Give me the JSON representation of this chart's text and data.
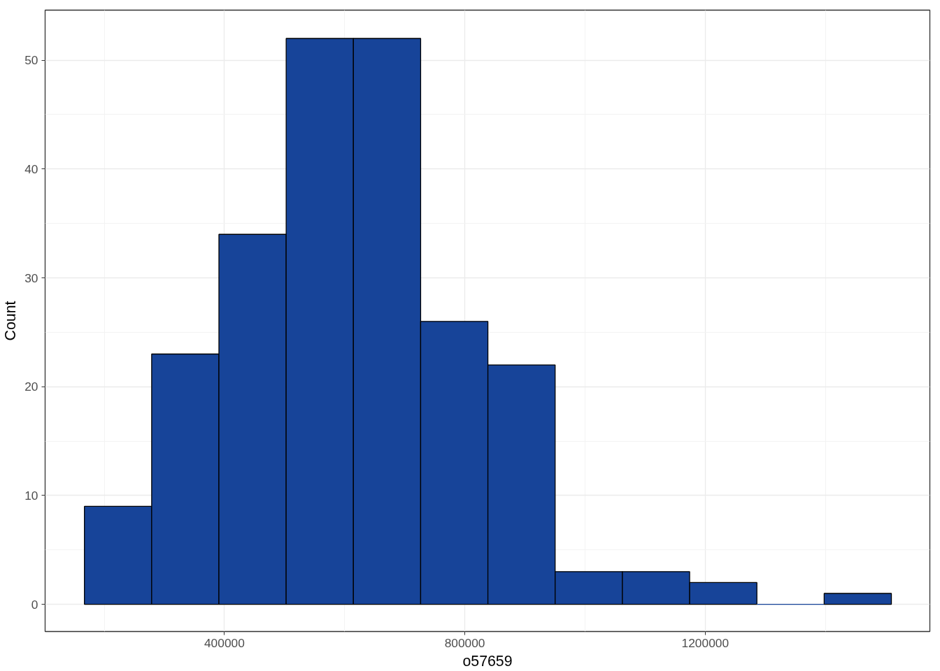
{
  "chart_data": {
    "type": "histogram",
    "xlabel": "o57659",
    "ylabel": "Count",
    "bins": [
      167000,
      278900,
      390800,
      502700,
      614600,
      726500,
      838400,
      950300,
      1062200,
      1174100,
      1286000,
      1397900,
      1509800
    ],
    "values": [
      9,
      23,
      34,
      52,
      52,
      26,
      22,
      3,
      3,
      2,
      0,
      1
    ],
    "color": "#174499",
    "xlim": [
      101600,
      1573800
    ],
    "ylim": [
      -2.5,
      54.6
    ],
    "xticks": [
      400000,
      800000,
      1200000
    ],
    "yticks": [
      0,
      10,
      20,
      30,
      40,
      50
    ],
    "grid": true
  }
}
